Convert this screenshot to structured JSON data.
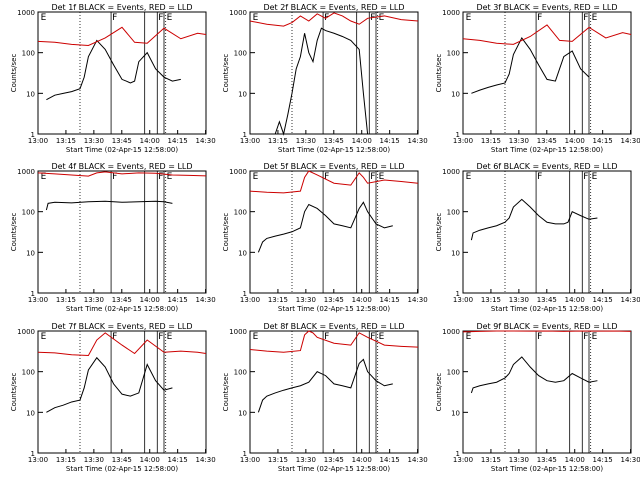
{
  "chart_data": [
    {
      "type": "line",
      "title": "Det 1f BLACK = Events, RED = LLD",
      "xlabel": "Start Time (02-Apr-15 12:58:00)",
      "ylabel": "Counts/sec",
      "xticks": [
        "13:00",
        "13:15",
        "13:30",
        "13:45",
        "14:00",
        "14:15",
        "14:30"
      ],
      "yticks": [
        "1",
        "10",
        "100",
        "1000"
      ],
      "ylim": [
        1,
        1000
      ],
      "yscale": "log",
      "markers": [
        "E",
        "F",
        "F",
        "E"
      ],
      "series": [
        {
          "color": "#000000",
          "x": [
            0.1,
            0.2,
            0.3,
            0.4,
            0.5,
            0.55,
            0.6,
            0.7,
            0.8,
            0.9,
            1.0,
            1.05,
            1.1,
            1.15,
            1.2,
            1.3,
            1.4,
            1.5,
            1.6,
            1.7
          ],
          "y": [
            7,
            9,
            10,
            11,
            13,
            25,
            80,
            200,
            120,
            50,
            22,
            20,
            18,
            20,
            60,
            100,
            40,
            25,
            20,
            22
          ]
        },
        {
          "color": "#cc0000",
          "x": [
            0.0,
            0.2,
            0.4,
            0.6,
            0.8,
            1.0,
            1.15,
            1.3,
            1.5,
            1.7,
            1.9,
            2.0
          ],
          "y": [
            190,
            180,
            160,
            150,
            230,
            420,
            180,
            170,
            400,
            220,
            300,
            280
          ]
        }
      ]
    },
    {
      "type": "line",
      "title": "Det 2f BLACK = Events, RED = LLD",
      "xlabel": "Start Time (02-Apr-15 12:58:00)",
      "ylabel": "Counts/sec",
      "xticks": [
        "13:00",
        "13:15",
        "13:30",
        "13:45",
        "14:00",
        "14:15",
        "14:30"
      ],
      "yticks": [
        "1",
        "10",
        "100",
        "1000"
      ],
      "ylim": [
        1,
        1000
      ],
      "yscale": "log",
      "markers": [
        "E",
        "F",
        "F",
        "E"
      ],
      "series": [
        {
          "color": "#000000",
          "x": [
            0.3,
            0.35,
            0.4,
            0.45,
            0.5,
            0.55,
            0.6,
            0.65,
            0.7,
            0.75,
            0.8,
            0.85,
            0.9,
            1.0,
            1.1,
            1.2,
            1.3,
            1.35,
            1.4
          ],
          "y": [
            1,
            2,
            1,
            3,
            10,
            40,
            80,
            300,
            100,
            60,
            200,
            400,
            350,
            300,
            250,
            200,
            120,
            10,
            1
          ]
        },
        {
          "color": "#cc0000",
          "x": [
            0.0,
            0.2,
            0.4,
            0.5,
            0.6,
            0.7,
            0.8,
            0.9,
            1.0,
            1.1,
            1.2,
            1.3,
            1.4,
            1.6,
            1.8,
            2.0
          ],
          "y": [
            600,
            500,
            450,
            550,
            800,
            600,
            900,
            700,
            950,
            800,
            600,
            500,
            700,
            800,
            650,
            600
          ]
        }
      ]
    },
    {
      "type": "line",
      "title": "Det 3f BLACK = Events, RED = LLD",
      "xlabel": "Start Time (02-Apr-15 12:58:00)",
      "ylabel": "Counts/sec",
      "xticks": [
        "13:00",
        "13:15",
        "13:30",
        "13:45",
        "14:00",
        "14:15",
        "14:30"
      ],
      "yticks": [
        "1",
        "10",
        "100",
        "1000"
      ],
      "ylim": [
        1,
        1000
      ],
      "yscale": "log",
      "markers": [
        "E",
        "F",
        "F",
        "E"
      ],
      "series": [
        {
          "color": "#000000",
          "x": [
            0.1,
            0.2,
            0.3,
            0.4,
            0.5,
            0.55,
            0.6,
            0.7,
            0.8,
            0.9,
            1.0,
            1.1,
            1.2,
            1.3,
            1.4,
            1.5
          ],
          "y": [
            10,
            12,
            14,
            16,
            18,
            30,
            90,
            230,
            120,
            50,
            22,
            20,
            80,
            110,
            40,
            25
          ]
        },
        {
          "color": "#cc0000",
          "x": [
            0.0,
            0.2,
            0.4,
            0.6,
            0.8,
            1.0,
            1.15,
            1.3,
            1.5,
            1.7,
            1.9,
            2.0
          ],
          "y": [
            220,
            200,
            170,
            160,
            250,
            480,
            200,
            190,
            420,
            230,
            310,
            280
          ]
        }
      ]
    },
    {
      "type": "line",
      "title": "Det 4f BLACK = Events, RED = LLD",
      "xlabel": "Start Time (02-Apr-15 12:58:00)",
      "ylabel": "Counts/sec",
      "xticks": [
        "13:00",
        "13:15",
        "13:30",
        "13:45",
        "14:00",
        "14:15",
        "14:30"
      ],
      "yticks": [
        "1",
        "10",
        "100",
        "1000"
      ],
      "ylim": [
        1,
        1000
      ],
      "yscale": "log",
      "markers": [
        "E",
        "F",
        "F",
        "E"
      ],
      "series": [
        {
          "color": "#000000",
          "x": [
            0.1,
            0.12,
            0.2,
            0.4,
            0.6,
            0.8,
            1.0,
            1.2,
            1.4,
            1.5,
            1.6
          ],
          "y": [
            110,
            160,
            170,
            165,
            175,
            180,
            170,
            175,
            180,
            175,
            160
          ]
        },
        {
          "color": "#cc0000",
          "x": [
            0.0,
            0.2,
            0.4,
            0.6,
            0.7,
            0.8,
            1.0,
            1.2,
            1.4,
            1.6,
            1.8,
            2.0
          ],
          "y": [
            900,
            850,
            800,
            750,
            900,
            950,
            850,
            900,
            880,
            800,
            780,
            760
          ]
        }
      ]
    },
    {
      "type": "line",
      "title": "Det 5f BLACK = Events, RED = LLD",
      "xlabel": "Start Time (02-Apr-15 12:58:00)",
      "ylabel": "Counts/sec",
      "xticks": [
        "13:00",
        "13:15",
        "13:30",
        "13:45",
        "14:00",
        "14:15",
        "14:30"
      ],
      "yticks": [
        "1",
        "10",
        "100",
        "1000"
      ],
      "ylim": [
        1,
        1000
      ],
      "yscale": "log",
      "markers": [
        "E",
        "F",
        "F",
        "E"
      ],
      "series": [
        {
          "color": "#000000",
          "x": [
            0.1,
            0.15,
            0.2,
            0.3,
            0.4,
            0.5,
            0.6,
            0.65,
            0.7,
            0.8,
            0.9,
            1.0,
            1.1,
            1.2,
            1.3,
            1.35,
            1.4,
            1.5,
            1.6,
            1.7
          ],
          "y": [
            10,
            18,
            22,
            25,
            28,
            32,
            40,
            100,
            150,
            120,
            80,
            50,
            45,
            40,
            120,
            170,
            100,
            50,
            40,
            45
          ]
        },
        {
          "color": "#cc0000",
          "x": [
            0.0,
            0.2,
            0.4,
            0.6,
            0.65,
            0.7,
            0.8,
            1.0,
            1.2,
            1.3,
            1.35,
            1.4,
            1.6,
            1.8,
            2.0
          ],
          "y": [
            320,
            300,
            290,
            320,
            700,
            1000,
            800,
            500,
            450,
            900,
            700,
            500,
            600,
            550,
            500
          ]
        }
      ]
    },
    {
      "type": "line",
      "title": "Det 6f BLACK = Events, RED = LLD",
      "xlabel": "Start Time (02-Apr-15 12:58:00)",
      "ylabel": "Counts/sec",
      "xticks": [
        "13:00",
        "13:15",
        "13:30",
        "13:45",
        "14:00",
        "14:15",
        "14:30"
      ],
      "yticks": [
        "1",
        "10",
        "100",
        "1000"
      ],
      "ylim": [
        1,
        1000
      ],
      "yscale": "log",
      "markers": [
        "E",
        "F",
        "F",
        "E"
      ],
      "series": [
        {
          "color": "#000000",
          "x": [
            0.1,
            0.12,
            0.2,
            0.3,
            0.4,
            0.5,
            0.55,
            0.6,
            0.7,
            0.8,
            0.9,
            1.0,
            1.1,
            1.2,
            1.25,
            1.3,
            1.4,
            1.5,
            1.6
          ],
          "y": [
            20,
            30,
            35,
            40,
            45,
            55,
            70,
            130,
            200,
            130,
            80,
            55,
            50,
            50,
            55,
            100,
            80,
            65,
            70
          ]
        }
      ]
    },
    {
      "type": "line",
      "title": "Det 7f BLACK = Events, RED = LLD",
      "xlabel": "Start Time (02-Apr-15 12:58:00)",
      "ylabel": "Counts/sec",
      "xticks": [
        "13:00",
        "13:15",
        "13:30",
        "13:45",
        "14:00",
        "14:15",
        "14:30"
      ],
      "yticks": [
        "1",
        "10",
        "100",
        "1000"
      ],
      "ylim": [
        1,
        1000
      ],
      "yscale": "log",
      "markers": [
        "E",
        "F",
        "F",
        "E"
      ],
      "series": [
        {
          "color": "#000000",
          "x": [
            0.1,
            0.2,
            0.3,
            0.4,
            0.5,
            0.55,
            0.6,
            0.7,
            0.8,
            0.9,
            1.0,
            1.1,
            1.2,
            1.3,
            1.4,
            1.5,
            1.6
          ],
          "y": [
            10,
            13,
            15,
            18,
            20,
            40,
            110,
            220,
            130,
            50,
            28,
            25,
            30,
            150,
            60,
            35,
            40
          ]
        },
        {
          "color": "#cc0000",
          "x": [
            0.0,
            0.2,
            0.4,
            0.6,
            0.7,
            0.8,
            1.0,
            1.15,
            1.3,
            1.5,
            1.7,
            1.9,
            2.0
          ],
          "y": [
            300,
            290,
            260,
            250,
            600,
            900,
            450,
            280,
            600,
            300,
            320,
            300,
            280
          ]
        }
      ]
    },
    {
      "type": "line",
      "title": "Det 8f BLACK = Events, RED = LLD",
      "xlabel": "Start Time (02-Apr-15 12:58:00)",
      "ylabel": "Counts/sec",
      "xticks": [
        "13:00",
        "13:15",
        "13:30",
        "13:45",
        "14:00",
        "14:15",
        "14:30"
      ],
      "yticks": [
        "1",
        "10",
        "100",
        "1000"
      ],
      "ylim": [
        1,
        1000
      ],
      "yscale": "log",
      "markers": [
        "E",
        "F",
        "F",
        "E"
      ],
      "series": [
        {
          "color": "#000000",
          "x": [
            0.1,
            0.15,
            0.2,
            0.3,
            0.4,
            0.5,
            0.6,
            0.7,
            0.8,
            0.9,
            1.0,
            1.1,
            1.2,
            1.3,
            1.35,
            1.4,
            1.5,
            1.6,
            1.7
          ],
          "y": [
            10,
            20,
            25,
            30,
            35,
            40,
            45,
            55,
            100,
            80,
            50,
            45,
            40,
            160,
            200,
            100,
            60,
            45,
            50
          ]
        },
        {
          "color": "#cc0000",
          "x": [
            0.0,
            0.2,
            0.4,
            0.6,
            0.65,
            0.7,
            0.75,
            0.8,
            1.0,
            1.2,
            1.3,
            1.4,
            1.6,
            1.8,
            2.0
          ],
          "y": [
            350,
            320,
            300,
            330,
            800,
            1000,
            900,
            700,
            500,
            450,
            900,
            700,
            450,
            420,
            400
          ]
        }
      ]
    },
    {
      "type": "line",
      "title": "Det 9f BLACK = Events, RED = LLD",
      "xlabel": "Start Time (02-Apr-15 12:58:00)",
      "ylabel": "Counts/sec",
      "xticks": [
        "13:00",
        "13:15",
        "13:30",
        "13:45",
        "14:00",
        "14:15",
        "14:30"
      ],
      "yticks": [
        "1",
        "10",
        "100",
        "1000"
      ],
      "ylim": [
        1,
        1000
      ],
      "yscale": "log",
      "markers": [
        "E",
        "F",
        "F",
        "E"
      ],
      "series": [
        {
          "color": "#000000",
          "x": [
            0.1,
            0.12,
            0.2,
            0.3,
            0.4,
            0.5,
            0.55,
            0.6,
            0.7,
            0.8,
            0.9,
            1.0,
            1.1,
            1.2,
            1.3,
            1.4,
            1.5,
            1.6
          ],
          "y": [
            30,
            40,
            45,
            50,
            55,
            70,
            90,
            150,
            230,
            130,
            80,
            60,
            55,
            60,
            90,
            70,
            55,
            60
          ]
        },
        {
          "color": "#cc0000",
          "x": [
            0.0,
            0.2,
            0.4,
            0.6,
            0.8,
            1.0,
            1.2,
            1.4,
            1.6,
            1.8,
            2.0
          ],
          "y": [
            950,
            980,
            1000,
            1000,
            990,
            1000,
            980,
            1000,
            990,
            1000,
            980
          ]
        }
      ]
    }
  ]
}
